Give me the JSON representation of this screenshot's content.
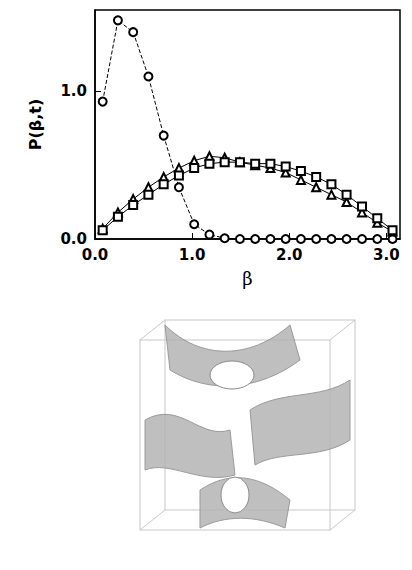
{
  "chart_data": {
    "type": "line",
    "x_label": "β",
    "y_label": "P(β,t)",
    "x": [
      0.079,
      0.236,
      0.393,
      0.55,
      0.707,
      0.864,
      1.021,
      1.178,
      1.335,
      1.492,
      1.649,
      1.806,
      1.963,
      2.12,
      2.277,
      2.434,
      2.59,
      2.749,
      2.906,
      3.063
    ],
    "series": [
      {
        "color": "#000000",
        "marker": "circle",
        "line_style": "dashed",
        "values": [
          0.93,
          1.48,
          1.4,
          1.1,
          0.7,
          0.35,
          0.1,
          0.03,
          0.005,
          0,
          0,
          0,
          0,
          0,
          0,
          0,
          0,
          0,
          0,
          0
        ]
      },
      {
        "color": "#000000",
        "marker": "triangle",
        "line_style": "solid",
        "values": [
          0.07,
          0.18,
          0.27,
          0.35,
          0.42,
          0.48,
          0.53,
          0.56,
          0.55,
          0.52,
          0.5,
          0.48,
          0.45,
          0.4,
          0.35,
          0.3,
          0.25,
          0.18,
          0.11,
          0.05
        ]
      },
      {
        "color": "#000000",
        "marker": "square",
        "line_style": "solid",
        "values": [
          0.06,
          0.15,
          0.23,
          0.3,
          0.37,
          0.43,
          0.48,
          0.51,
          0.52,
          0.52,
          0.51,
          0.51,
          0.49,
          0.46,
          0.42,
          0.37,
          0.3,
          0.22,
          0.14,
          0.06
        ]
      }
    ],
    "xlim": [
      0,
      3.14
    ],
    "ylim": [
      0,
      1.55
    ],
    "xticks": [
      {
        "value": 0,
        "label": "0.0"
      },
      {
        "value": 1,
        "label": "1.0"
      },
      {
        "value": 2,
        "label": "2.0"
      },
      {
        "value": 3,
        "label": "3.0"
      }
    ],
    "yticks": [
      {
        "value": 0,
        "label": "0.0"
      },
      {
        "value": 1,
        "label": "1.0"
      }
    ]
  }
}
